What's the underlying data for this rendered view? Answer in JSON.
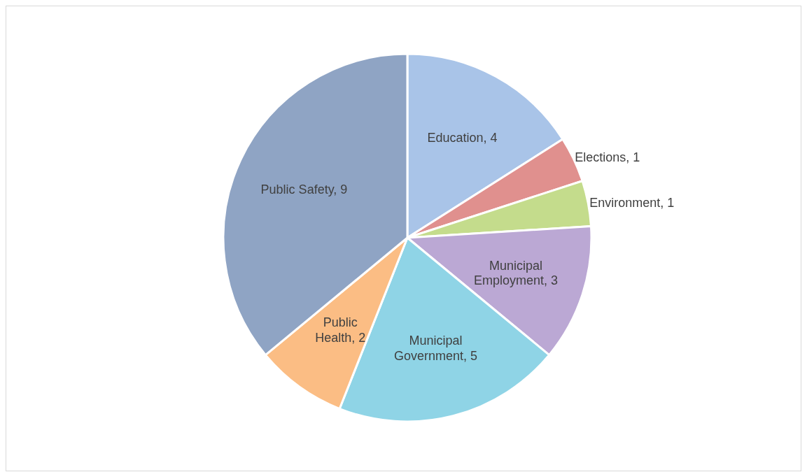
{
  "chart_data": {
    "type": "pie",
    "categories": [
      "Education",
      "Elections",
      "Environment",
      "Municipal Employment",
      "Municipal Government",
      "Public Health",
      "Public Safety"
    ],
    "values": [
      4,
      1,
      1,
      3,
      5,
      2,
      9
    ],
    "colors": [
      "#a9c4e8",
      "#e0908e",
      "#c4dc8c",
      "#bba8d4",
      "#8fd4e6",
      "#fbbd84",
      "#8fa4c4"
    ],
    "value_labels": [
      ", 4",
      ", 1",
      ", 1",
      ", 3",
      ", 5",
      ", 2",
      ", 9"
    ],
    "legend": false
  }
}
